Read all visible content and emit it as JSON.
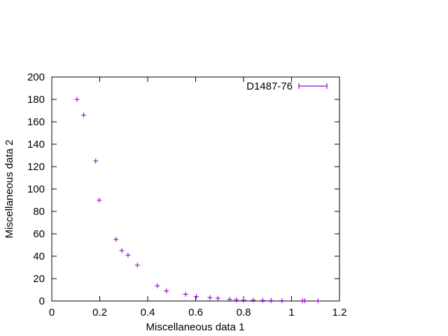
{
  "chart_data": {
    "type": "scatter",
    "title": "",
    "xlabel": "Miscellaneous data 1",
    "ylabel": "Miscellaneous data 2",
    "xlim": [
      0,
      1.2
    ],
    "ylim": [
      0,
      200
    ],
    "xticks": [
      "0",
      "0.2",
      "0.4",
      "0.6",
      "0.8",
      "1",
      "1.2"
    ],
    "yticks": [
      "0",
      "20",
      "40",
      "60",
      "80",
      "100",
      "120",
      "140",
      "160",
      "180",
      "200"
    ],
    "grid": false,
    "legend_position": "top-right",
    "series": [
      {
        "name": "D1487-76",
        "color": "#9400d3",
        "marker": "plus",
        "points": [
          [
            0.105,
            180
          ],
          [
            0.133,
            166
          ],
          [
            0.183,
            125
          ],
          [
            0.198,
            90
          ],
          [
            0.268,
            55
          ],
          [
            0.292,
            45
          ],
          [
            0.318,
            41
          ],
          [
            0.357,
            32
          ],
          [
            0.44,
            13.5
          ],
          [
            0.478,
            9
          ],
          [
            0.558,
            6
          ],
          [
            0.603,
            4
          ],
          [
            0.66,
            3
          ],
          [
            0.693,
            2.5
          ],
          [
            0.742,
            1.5
          ],
          [
            0.77,
            1
          ],
          [
            0.8,
            0.8
          ],
          [
            0.84,
            0.7
          ],
          [
            0.88,
            0.5
          ],
          [
            0.915,
            0.4
          ],
          [
            0.96,
            0.3
          ],
          [
            1.045,
            0.2
          ],
          [
            1.055,
            0.2
          ],
          [
            1.11,
            0.1
          ]
        ]
      }
    ]
  }
}
